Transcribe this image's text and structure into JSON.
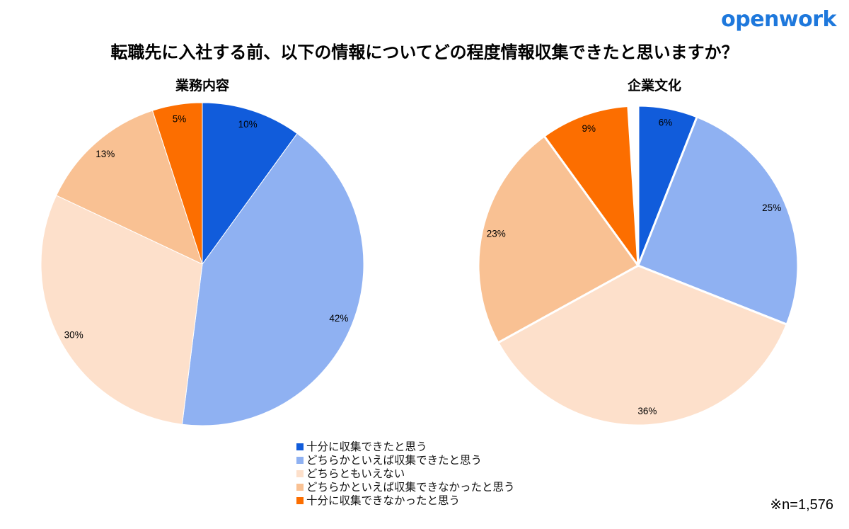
{
  "logo": {
    "text": "openwork",
    "color": "#1E78DC"
  },
  "title": "転職先に入社する前、以下の情報についてどの程度情報収集できたと思いますか？",
  "footnote": "※n=1,576",
  "palette": [
    "#115CDB",
    "#8FB1F2",
    "#FDE0CB",
    "#F9C193",
    "#FC6E00"
  ],
  "legend": {
    "items": [
      "十分に収集できたと思う",
      "どちらかといえば収集できたと思う",
      "どちらともいえない",
      "どちらかといえば収集できなかったと思う",
      "十分に収集できなかったと思う"
    ]
  },
  "chart_data": [
    {
      "type": "pie",
      "title": "業務内容",
      "categories": [
        "十分に収集できたと思う",
        "どちらかといえば収集できたと思う",
        "どちらともいえない",
        "どちらかといえば収集できなかったと思う",
        "十分に収集できなかったと思う"
      ],
      "values": [
        10,
        42,
        30,
        13,
        5
      ],
      "labels": [
        "10%",
        "42%",
        "30%",
        "13%",
        "5%"
      ],
      "unit": "percent",
      "start_angle_deg": 0,
      "direction": "clockwise"
    },
    {
      "type": "pie",
      "title": "企業文化",
      "categories": [
        "十分に収集できたと思う",
        "どちらかといえば収集できたと思う",
        "どちらともいえない",
        "どちらかといえば収集できなかったと思う",
        "十分に収集できなかったと思う"
      ],
      "values": [
        6,
        25,
        36,
        23,
        9
      ],
      "labels": [
        "6%",
        "25%",
        "36%",
        "23%",
        "9%"
      ],
      "unit": "percent",
      "start_angle_deg": 0,
      "direction": "clockwise"
    }
  ]
}
